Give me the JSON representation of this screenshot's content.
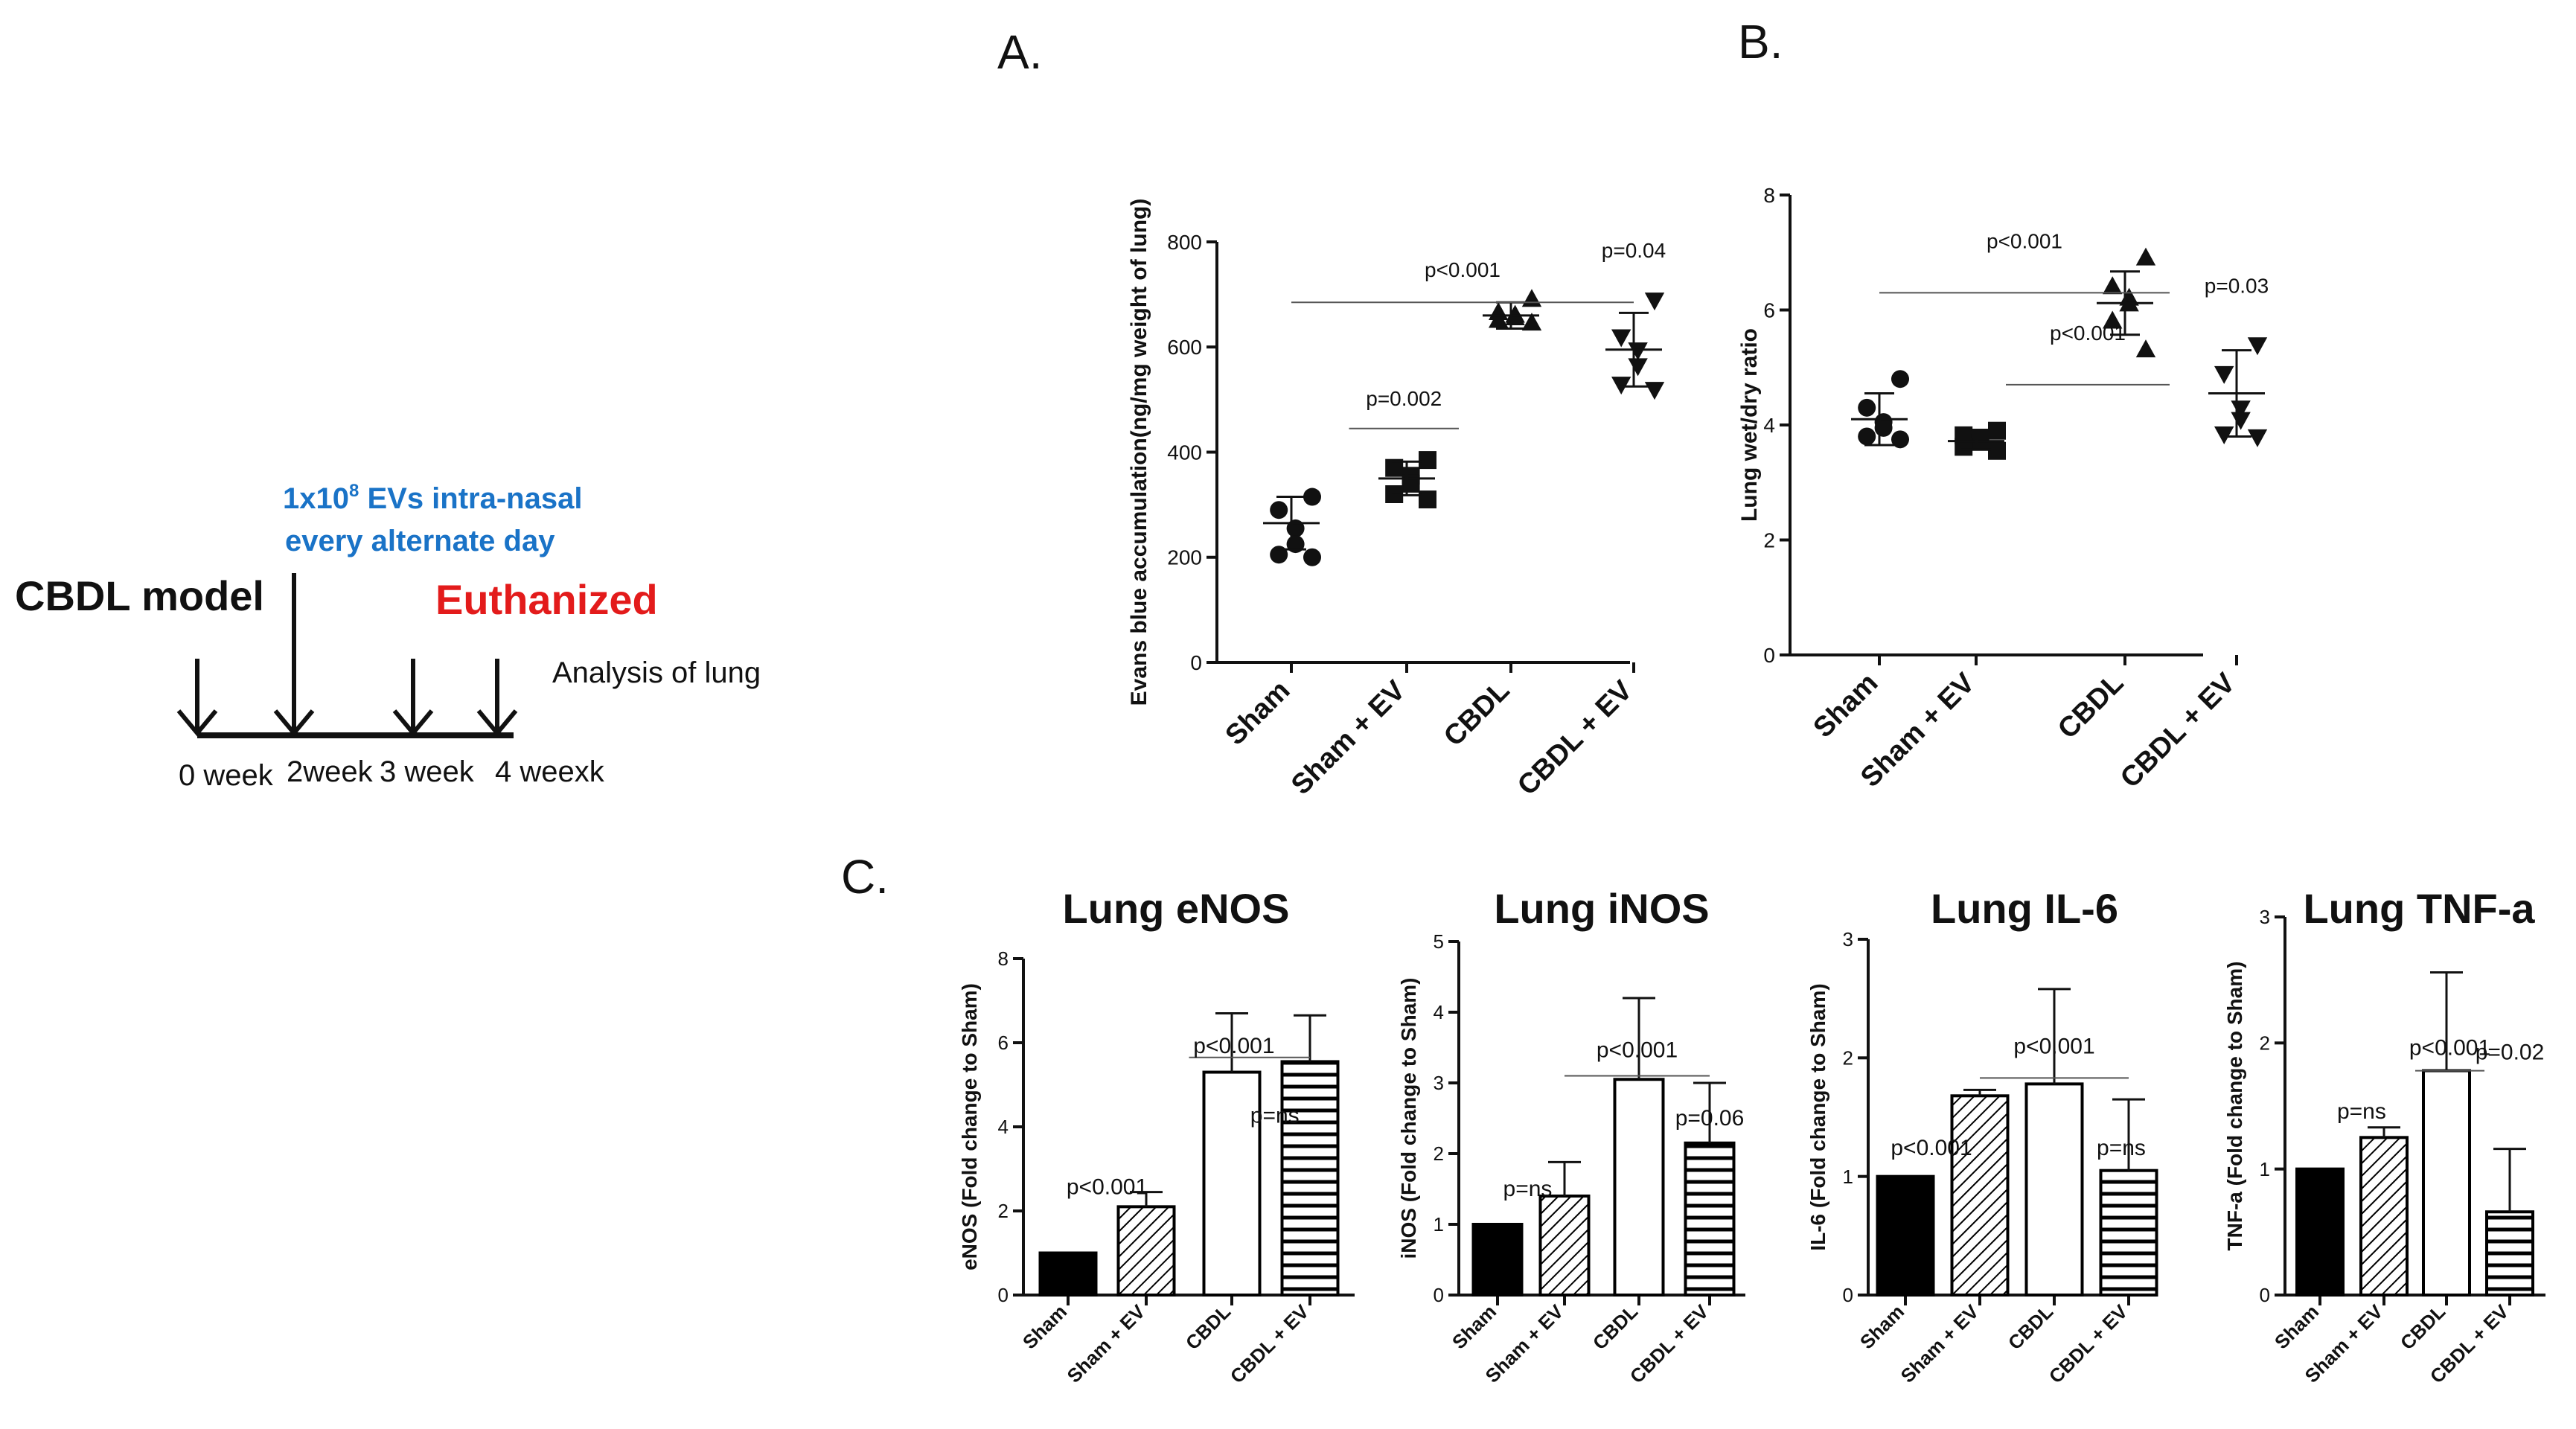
{
  "timeline": {
    "model_label": "CBDL model",
    "ev_line1": "1x10",
    "ev_sup": "8",
    "ev_line1b": " EVs intra-nasal",
    "ev_line2": "every alternate day",
    "euthanized": "Euthanized",
    "analysis": "Analysis of lung",
    "weeks": [
      "0 week",
      "2week",
      "3 week",
      "4 weexk"
    ],
    "colors": {
      "ev": "#1a73c7",
      "euth": "#e31b1b"
    }
  },
  "panel_labels": {
    "a": "A.",
    "b": "B.",
    "c": "C."
  },
  "chart_data": [
    {
      "type": "scatter",
      "panel": "A",
      "ylabel": "Evans blue accumulation(ng/mg weight of lung)",
      "categories": [
        "Sham",
        "Sham + EV",
        "CBDL",
        "CBDL + EV"
      ],
      "yticks": [
        "0",
        "200",
        "400",
        "600",
        "800"
      ],
      "ylim": [
        0,
        800
      ],
      "markers": [
        "circle",
        "square",
        "triangle-up",
        "triangle-down"
      ],
      "points": [
        [
          315,
          290,
          255,
          225,
          205,
          200
        ],
        [
          385,
          370,
          355,
          340,
          320,
          310
        ],
        [
          690,
          665,
          660,
          655,
          650,
          645
        ],
        [
          690,
          620,
          595,
          565,
          530,
          520
        ]
      ],
      "mean": [
        265,
        350,
        660,
        595
      ],
      "sd": [
        50,
        32,
        25,
        70
      ],
      "annotations": [
        {
          "text": "p<0.001",
          "from": 0,
          "to": 3,
          "line_y": 685,
          "text_y": 725
        },
        {
          "text": "p=0.002",
          "from": 0.5,
          "to": 1.5,
          "line_y": 445,
          "text_y": 480
        },
        {
          "text": "p=0.04",
          "at": 3,
          "text_y": 770
        }
      ]
    },
    {
      "type": "scatter",
      "panel": "B",
      "ylabel": "Lung  wet/dry ratio",
      "categories": [
        "Sham",
        "Sham + EV",
        "CBDL",
        "CBDL + EV"
      ],
      "yticks": [
        "0",
        "2",
        "4",
        "6",
        "8"
      ],
      "ylim": [
        0,
        8
      ],
      "markers": [
        "circle",
        "square",
        "triangle-up",
        "triangle-down"
      ],
      "points": [
        [
          4.8,
          4.3,
          4.05,
          3.95,
          3.8,
          3.75
        ],
        [
          3.9,
          3.82,
          3.78,
          3.72,
          3.62,
          3.55
        ],
        [
          6.9,
          6.4,
          6.2,
          6.1,
          5.8,
          5.3
        ],
        [
          5.4,
          4.9,
          4.3,
          4.1,
          3.85,
          3.8
        ]
      ],
      "mean": [
        4.1,
        3.72,
        6.12,
        4.55
      ],
      "sd": [
        0.45,
        0.15,
        0.55,
        0.75
      ],
      "annotations": [
        {
          "text": "p<0.001",
          "from": 0,
          "to": 2.4,
          "line_y": 6.3,
          "text_y": 7.0
        },
        {
          "text": "p<0.001",
          "from": 1.2,
          "to": 2.4,
          "line_y": 4.7,
          "text_y": 5.4
        },
        {
          "text": "p=0.03",
          "at": 3,
          "text_y": 6.3
        }
      ]
    },
    {
      "type": "bar",
      "panel": "C1",
      "title": "Lung eNOS",
      "ylabel": "eNOS (Fold change to Sham)",
      "categories": [
        "Sham",
        "Sham + EV",
        "CBDL",
        "CBDL + EV"
      ],
      "yticks": [
        "0",
        "2",
        "4",
        "6",
        "8"
      ],
      "ylim": [
        0,
        8
      ],
      "values": [
        1.0,
        2.1,
        5.3,
        5.55
      ],
      "errors": [
        0,
        0.35,
        1.4,
        1.1
      ],
      "fills": [
        "solid",
        "diag",
        "open",
        "horiz"
      ],
      "annotations": [
        {
          "text": "p<0.001",
          "at": 0.5,
          "text_y": 2.4
        },
        {
          "text": "p<0.001",
          "from": 1.5,
          "to": 3.3,
          "line_y": 5.65,
          "text_y": 5.65,
          "tx": 1.55
        },
        {
          "text": "p=ns",
          "at": 2.55,
          "text_y": 4.1
        }
      ]
    },
    {
      "type": "bar",
      "panel": "C2",
      "title": "Lung iNOS",
      "ylabel": "iNOS (Fold change to Sham)",
      "categories": [
        "Sham",
        "Sham + EV",
        "CBDL",
        "CBDL + EV"
      ],
      "yticks": [
        "0",
        "1",
        "2",
        "3",
        "4",
        "5"
      ],
      "ylim": [
        0,
        5
      ],
      "values": [
        1.0,
        1.4,
        3.05,
        2.15
      ],
      "errors": [
        0,
        0.48,
        1.15,
        0.85
      ],
      "fills": [
        "solid",
        "diag",
        "open",
        "horiz"
      ],
      "annotations": [
        {
          "text": "p=ns",
          "at": 0.45,
          "text_y": 1.4
        },
        {
          "text": "p<0.001",
          "from": 1,
          "to": 3.1,
          "line_y": 3.1,
          "text_y": 3.3
        },
        {
          "text": "p=0.06",
          "at": 3,
          "text_y": 2.4
        }
      ]
    },
    {
      "type": "bar",
      "panel": "C3",
      "title": "Lung IL-6",
      "ylabel": "IL-6 (Fold change to Sham)",
      "categories": [
        "Sham",
        "Sham + EV",
        "CBDL",
        "CBDL + EV"
      ],
      "yticks": [
        "0",
        "1",
        "2",
        "3"
      ],
      "ylim": [
        0,
        3
      ],
      "values": [
        1.0,
        1.68,
        1.78,
        1.05
      ],
      "errors": [
        0,
        0.05,
        0.8,
        0.6
      ],
      "fills": [
        "solid",
        "diag",
        "open",
        "horiz"
      ],
      "annotations": [
        {
          "text": "p<0.001",
          "at": 0.35,
          "text_y": 1.18
        },
        {
          "text": "p<0.001",
          "from": 1,
          "to": 3.1,
          "line_y": 1.83,
          "text_y": 2.0
        },
        {
          "text": "p=ns",
          "at": 2.9,
          "text_y": 1.18
        }
      ]
    },
    {
      "type": "bar",
      "panel": "C4",
      "title": "Lung TNF-a",
      "ylabel": "TNF-a (Fold change to Sham)",
      "categories": [
        "Sham",
        "Sham + EV",
        "CBDL",
        "CBDL + EV"
      ],
      "yticks": [
        "0",
        "1",
        "2",
        "3"
      ],
      "ylim": [
        0,
        3
      ],
      "values": [
        1.0,
        1.25,
        1.78,
        0.66
      ],
      "errors": [
        0,
        0.08,
        0.78,
        0.5
      ],
      "fills": [
        "solid",
        "diag",
        "open",
        "horiz"
      ],
      "annotations": [
        {
          "text": "p=ns",
          "at": 0.65,
          "text_y": 1.4
        },
        {
          "text": "p<0.001",
          "from": 1.5,
          "to": 2.6,
          "line_y": 1.78,
          "text_y": 1.87
        },
        {
          "text": "p=0.02",
          "at": 3.05,
          "text_y": 1.87
        }
      ]
    }
  ]
}
